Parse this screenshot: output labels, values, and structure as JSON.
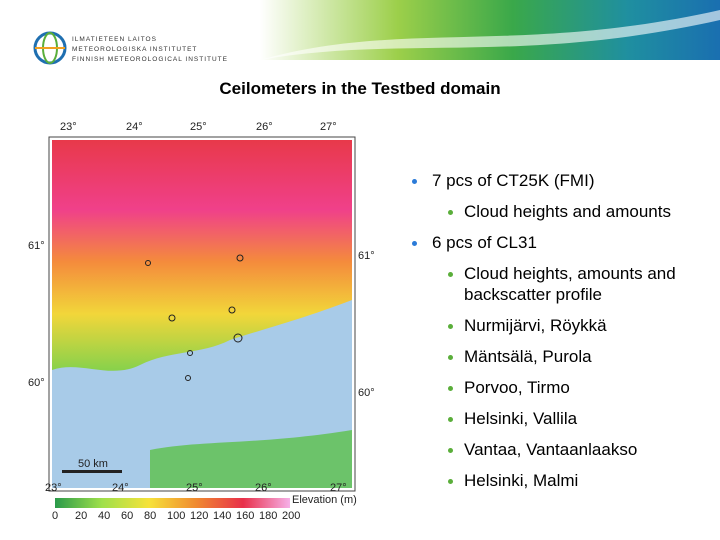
{
  "header": {
    "logo_lines": [
      "ILMATIETEEN LAITOS",
      "METEOROLOGISKA INSTITUTET",
      "FINNISH METEOROLOGICAL INSTITUTE"
    ]
  },
  "title": "Ceilometers in the Testbed domain",
  "map": {
    "top_labels": [
      "23°",
      "24°",
      "25°",
      "26°",
      "27°"
    ],
    "bottom_labels": [
      "23°",
      "24°",
      "25°",
      "26°",
      "27°"
    ],
    "left_labels": [
      "61°",
      "60°"
    ],
    "right_labels": [
      "61°",
      "60°"
    ],
    "scale": "50 km",
    "legend_title": "Elevation (m)",
    "legend_ticks": [
      "0",
      "20",
      "40",
      "60",
      "80",
      "100",
      "120",
      "140",
      "160",
      "180",
      "200"
    ]
  },
  "bullets": [
    {
      "text": "7 pcs of CT25K (FMI)",
      "sub": [
        "Cloud heights and amounts"
      ]
    },
    {
      "text": "6 pcs of CL31",
      "sub": [
        "Cloud heights, amounts and backscatter profile",
        "Nurmijärvi, Röykkä",
        "Mäntsälä, Purola",
        "Porvoo, Tirmo",
        "Helsinki, Vallila",
        "Vantaa, Vantaanlaakso",
        "Helsinki, Malmi"
      ]
    }
  ]
}
